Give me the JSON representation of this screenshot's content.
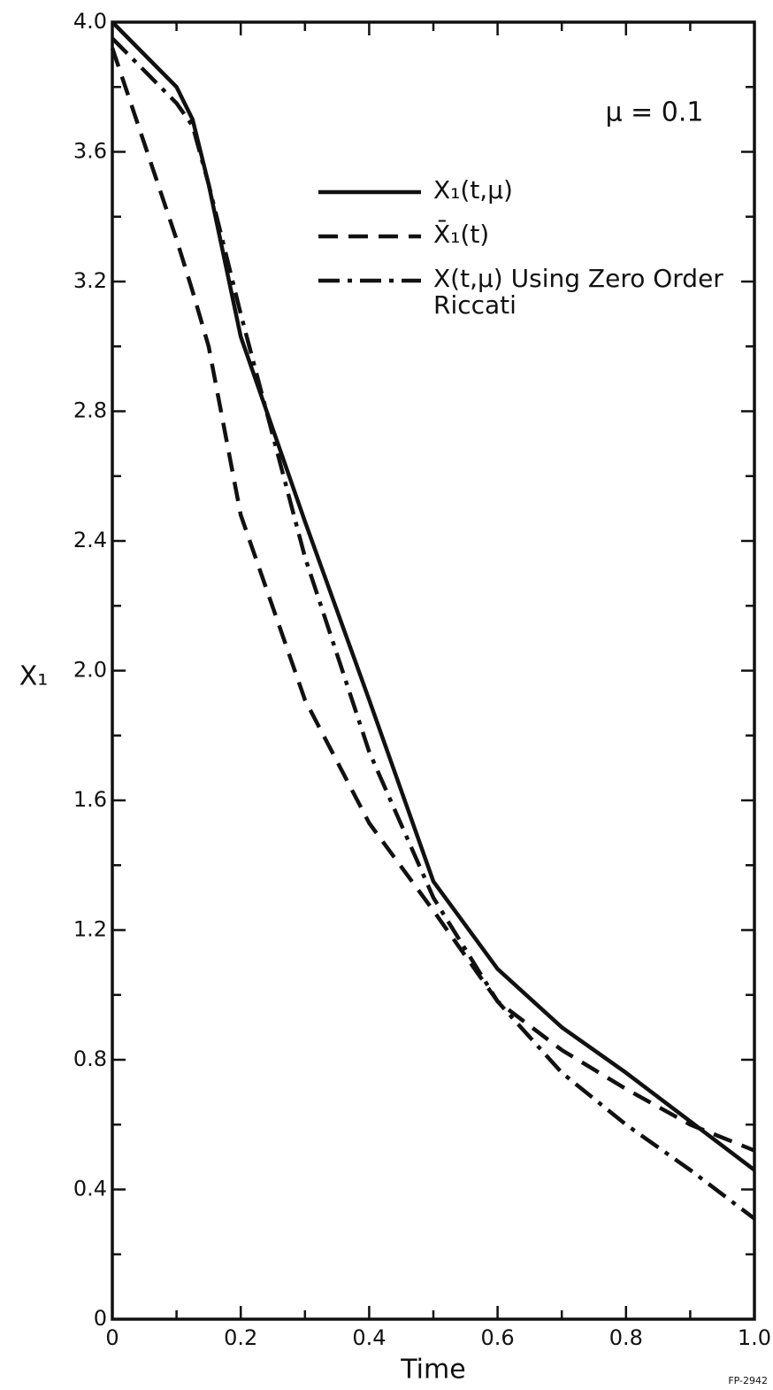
{
  "chart_data": {
    "type": "line",
    "annotation": "μ = 0.1",
    "xlabel": "Time",
    "ylabel": "X₁",
    "footnote": "FP-2942",
    "legend": "upper right",
    "x": [
      0,
      0.1,
      0.125,
      0.15,
      0.2,
      0.3,
      0.4,
      0.5,
      0.6,
      0.7,
      0.8,
      0.9,
      1.0
    ],
    "series": [
      {
        "name": "X₁(t,μ)",
        "color": "#111111",
        "style": "solid",
        "values": [
          4.0,
          3.8,
          3.7,
          3.5,
          3.03,
          2.46,
          1.91,
          1.35,
          1.08,
          0.9,
          0.76,
          0.61,
          0.46
        ]
      },
      {
        "name": "X̄₁(t)",
        "color": "#111111",
        "style": "dashed",
        "values": [
          3.92,
          3.33,
          3.17,
          3.0,
          2.48,
          1.91,
          1.53,
          1.26,
          0.98,
          0.83,
          0.71,
          0.6,
          0.52
        ]
      },
      {
        "name": "X(t,μ) Using Zero Order Riccati",
        "color": "#111111",
        "style": "dashdot",
        "values": [
          3.95,
          3.75,
          3.68,
          3.5,
          3.1,
          2.35,
          1.75,
          1.3,
          0.98,
          0.76,
          0.6,
          0.46,
          0.31
        ]
      }
    ],
    "xlim": [
      0,
      1.0
    ],
    "xticks": [
      0,
      0.2,
      0.4,
      0.6,
      0.8,
      {
        "value": 1.0,
        "label": "1.0"
      }
    ],
    "xminor": [
      0.1,
      0.3,
      0.5,
      0.7,
      0.9
    ],
    "ylim": [
      0,
      4.0
    ],
    "yticks": [
      0,
      0.4,
      0.8,
      1.2,
      1.6,
      {
        "value": 2.0,
        "label": "2.0"
      },
      2.4,
      2.8,
      3.2,
      3.6,
      {
        "value": 4.0,
        "label": "4.0"
      }
    ],
    "yminor": [
      0.2,
      0.6,
      1.0,
      1.4,
      1.8,
      2.2,
      2.6,
      3.0,
      3.4,
      3.8
    ],
    "grid": false
  }
}
